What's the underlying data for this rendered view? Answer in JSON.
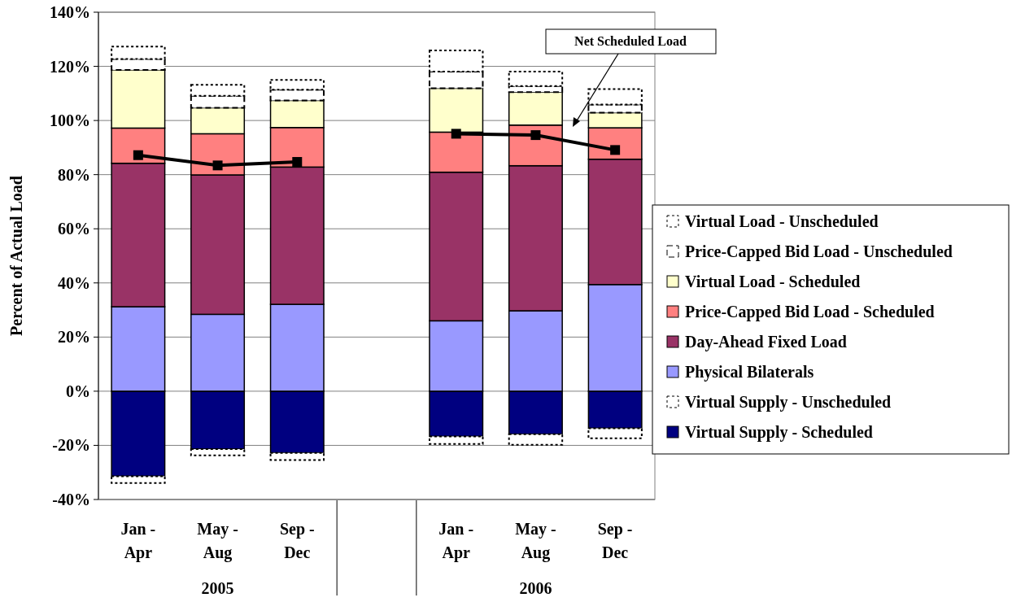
{
  "chart_data": {
    "type": "bar",
    "stacked": true,
    "ylabel": "Percent of Actual Load",
    "categories": [
      "Jan - Apr",
      "May - Aug",
      "Sep - Dec",
      null,
      "Jan - Apr",
      "May - Aug",
      "Sep - Dec"
    ],
    "annotations": [
      "2005",
      "2006"
    ],
    "ylim": [
      -40,
      140
    ],
    "yticks": [
      {
        "value": -40,
        "label": "-40%"
      },
      {
        "value": -20,
        "label": "-20%"
      },
      {
        "value": 0,
        "label": "0%"
      },
      {
        "value": 20,
        "label": "20%"
      },
      {
        "value": 40,
        "label": "40%"
      },
      {
        "value": 60,
        "label": "60%"
      },
      {
        "value": 80,
        "label": "80%"
      },
      {
        "value": 100,
        "label": "100%"
      },
      {
        "value": 120,
        "label": "120%"
      },
      {
        "value": 140,
        "label": "140%"
      }
    ],
    "grid": "y",
    "legend": "right",
    "series": [
      {
        "name": "Virtual Supply - Scheduled",
        "color": "#000080",
        "values": [
          -31.4,
          -21.4,
          -22.8,
          null,
          -16.7,
          -15.9,
          -13.7
        ]
      },
      {
        "name": "Virtual Supply - Unscheduled",
        "color": "#ffffff",
        "line_style": "dotted",
        "values": [
          -2.5,
          -2.3,
          -2.6,
          null,
          -2.8,
          -3.9,
          -3.7
        ]
      },
      {
        "name": "Physical Bilaterals",
        "color": "#9999ff",
        "values": [
          31.2,
          28.4,
          32.1,
          null,
          26,
          29.7,
          39.4
        ]
      },
      {
        "name": "Day-Ahead Fixed Load",
        "color": "#993366",
        "values": [
          53,
          51.5,
          50.7,
          null,
          54.9,
          53.6,
          46.3
        ]
      },
      {
        "name": "Price-Capped Bid Load - Scheduled",
        "color": "#ff8080",
        "values": [
          13,
          15.2,
          14.6,
          null,
          14.8,
          15,
          11.6
        ]
      },
      {
        "name": "Virtual Load - Scheduled",
        "color": "#ffffcc",
        "values": [
          21.5,
          9.6,
          10,
          null,
          16.2,
          12.2,
          5.6
        ]
      },
      {
        "name": "Price-Capped Bid Load - Unscheduled",
        "color": "#ffffff",
        "line_style": "dashed",
        "values": [
          4,
          4.4,
          4,
          null,
          6.2,
          2.2,
          3
        ]
      },
      {
        "name": "Virtual Load - Unscheduled",
        "color": "#ffffff",
        "line_style": "dotted",
        "values": [
          4.6,
          4.1,
          3.6,
          null,
          7.8,
          5.4,
          5.7
        ]
      },
      {
        "name": "Net Scheduled Load",
        "type": "line",
        "color": "#000000",
        "marker": "square",
        "values": [
          87.2,
          83.4,
          84.7,
          null,
          95.1,
          94.6,
          89.1
        ]
      }
    ]
  }
}
